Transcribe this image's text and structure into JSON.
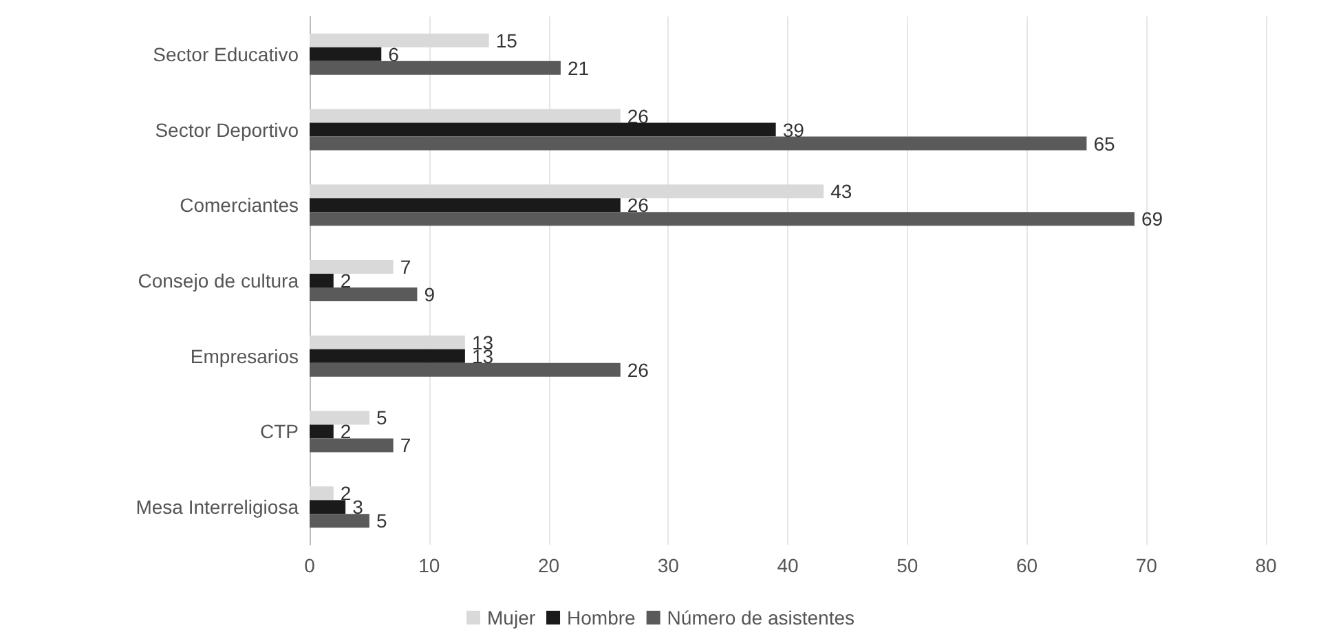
{
  "chart_data": {
    "type": "bar",
    "orientation": "horizontal",
    "categories": [
      "Sector Educativo",
      "Sector Deportivo",
      "Comerciantes",
      "Consejo de cultura",
      "Empresarios",
      "CTP",
      "Mesa Interreligiosa"
    ],
    "series": [
      {
        "name": "Mujer",
        "color": "#d9d9d9",
        "values": [
          15,
          26,
          43,
          7,
          13,
          5,
          2
        ]
      },
      {
        "name": "Hombre",
        "color": "#1a1a1a",
        "values": [
          6,
          39,
          26,
          2,
          13,
          2,
          3
        ]
      },
      {
        "name": "Número de asistentes",
        "color": "#5a5a5a",
        "values": [
          21,
          65,
          69,
          9,
          26,
          7,
          5
        ]
      }
    ],
    "xlim": [
      0,
      80
    ],
    "xticks": [
      0,
      10,
      20,
      30,
      40,
      50,
      60,
      70,
      80
    ],
    "grid": "x",
    "legend": "bottom",
    "data_labels": true
  }
}
